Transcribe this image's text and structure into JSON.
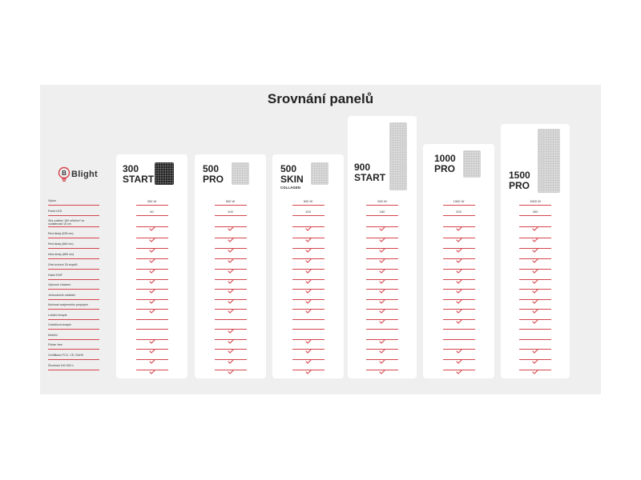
{
  "title": "Srovnání panelů",
  "brand": {
    "logo_text": "Blight",
    "accent": "#d5434b"
  },
  "features": [
    "Výkon",
    "Počet LED",
    "Síla ozáření 160 mW/cm² ze vzdálenosti 15 cm",
    "Red diody (635 nm)",
    "Red diody (660 nm)",
    "Infra diody (850 nm)",
    "Úhel svícení 30 stupňů",
    "Nízké EMF",
    "Výkonné chlazení",
    "Jednoduché ovládání",
    "Možnost vzájemného propojení",
    "Lokální terapie",
    "Celotělová terapie",
    "Mobilní",
    "Flicker free",
    "Certifikace FCC, CE, RoHS",
    "Životnost 100 000 h"
  ],
  "panels": [
    {
      "name_lines": [
        "300",
        "START"
      ],
      "subtitle": "",
      "image": "dark-panel-icon",
      "values": [
        "300 W",
        "60"
      ],
      "checks": [
        false,
        false,
        true,
        true,
        true,
        true,
        true,
        true,
        true,
        true,
        true,
        false,
        false,
        true,
        true,
        true,
        true
      ]
    },
    {
      "name_lines": [
        "500",
        "PRO"
      ],
      "subtitle": "",
      "image": "light-panel-icon",
      "values": [
        "500 W",
        "100"
      ],
      "checks": [
        true,
        false,
        true,
        true,
        true,
        true,
        true,
        true,
        true,
        true,
        true,
        false,
        true,
        true,
        true,
        true,
        true
      ]
    },
    {
      "name_lines": [
        "500",
        "SKIN"
      ],
      "subtitle": "COLLAGEN",
      "image": "light-panel-icon",
      "values": [
        "500 W",
        "100"
      ],
      "checks": [
        true,
        true,
        true,
        true,
        true,
        true,
        true,
        true,
        true,
        true,
        true,
        false,
        false,
        true,
        true,
        true,
        true
      ]
    },
    {
      "name_lines": [
        "900",
        "START"
      ],
      "subtitle": "",
      "image": "tall-panel-icon",
      "values": [
        "900 W",
        "180"
      ],
      "checks": [
        false,
        false,
        true,
        true,
        true,
        true,
        true,
        true,
        true,
        true,
        true,
        true,
        false,
        true,
        true,
        true,
        true
      ]
    },
    {
      "name_lines": [
        "1000",
        "PRO"
      ],
      "subtitle": "",
      "image": "light-panel-icon",
      "values": [
        "1000 W",
        "200"
      ],
      "checks": [
        true,
        false,
        true,
        true,
        true,
        true,
        true,
        true,
        true,
        true,
        true,
        true,
        false,
        false,
        true,
        true,
        true
      ]
    },
    {
      "name_lines": [
        "1500",
        "PRO"
      ],
      "subtitle": "",
      "image": "tall-panel-icon",
      "values": [
        "1500 W",
        "300"
      ],
      "checks": [
        true,
        false,
        true,
        true,
        true,
        true,
        true,
        true,
        true,
        true,
        true,
        true,
        false,
        false,
        true,
        true,
        true
      ]
    }
  ]
}
